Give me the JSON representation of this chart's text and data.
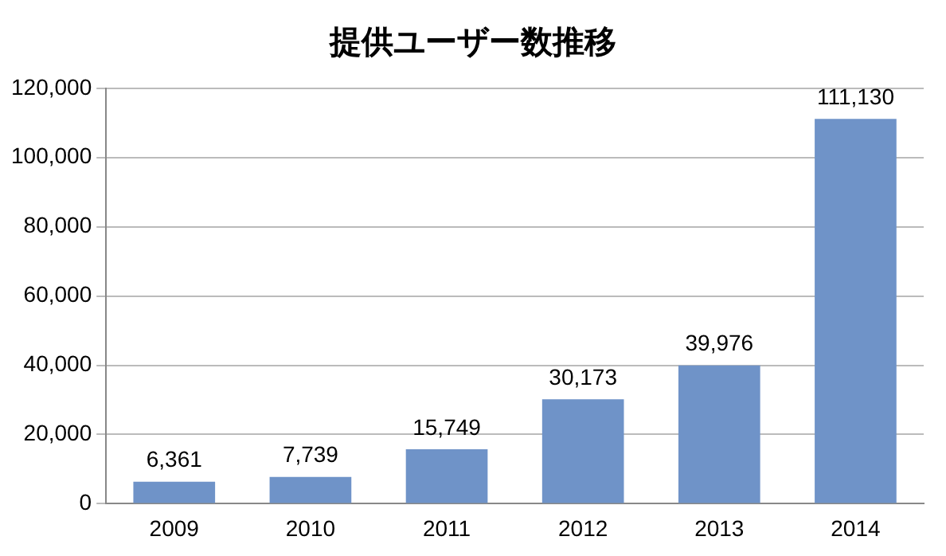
{
  "chart_data": {
    "type": "bar",
    "title": "提供ユーザー数推移",
    "categories": [
      "2009",
      "2010",
      "2011",
      "2012",
      "2013",
      "2014"
    ],
    "values": [
      6361,
      7739,
      15749,
      30173,
      39976,
      111130
    ],
    "value_labels": [
      "6,361",
      "7,739",
      "15,749",
      "30,173",
      "39,976",
      "111,130"
    ],
    "color": "#6f93c8",
    "ylim": [
      0,
      120000
    ],
    "yticks": [
      {
        "value": 0,
        "label": "0"
      },
      {
        "value": 20000,
        "label": "20,000"
      },
      {
        "value": 40000,
        "label": "40,000"
      },
      {
        "value": 60000,
        "label": "60,000"
      },
      {
        "value": 80000,
        "label": "80,000"
      },
      {
        "value": 100000,
        "label": "100,000"
      },
      {
        "value": 120000,
        "label": "120,000"
      }
    ],
    "grid": "y",
    "legend": false
  }
}
